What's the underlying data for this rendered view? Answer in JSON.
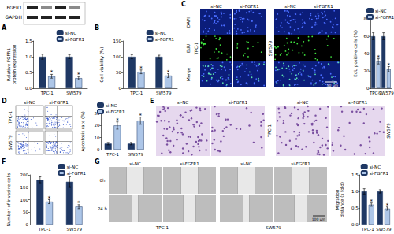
{
  "chart_data": [
    {
      "type": "bar",
      "ylabel": "Relative FGFR1 protein expression",
      "categories": [
        "TPC-1",
        "SW579"
      ],
      "series": [
        {
          "name": "si-NC",
          "color": "#1f3864",
          "values": [
            1.0,
            1.0
          ],
          "errors": [
            0.08,
            0.06
          ]
        },
        {
          "name": "si-FGFR1",
          "color": "#adc6e8",
          "values": [
            0.38,
            0.32
          ],
          "errors": [
            0.06,
            0.05
          ],
          "annotations": [
            "*",
            "*"
          ]
        }
      ],
      "ylim": [
        0,
        1.5
      ],
      "yticks": [
        {
          "value": 0,
          "label": "0.0"
        },
        0.5,
        {
          "value": 1,
          "label": "1.0"
        },
        1.5
      ],
      "legend": "upper right",
      "grid": false
    },
    {
      "type": "bar",
      "ylabel": "Cell viability (%)",
      "categories": [
        "TPC-1",
        "SW579"
      ],
      "series": [
        {
          "name": "si-NC",
          "color": "#1f3864",
          "values": [
            100,
            100
          ],
          "errors": [
            6,
            5
          ]
        },
        {
          "name": "si-FGFR1",
          "color": "#adc6e8",
          "values": [
            52,
            40
          ],
          "errors": [
            6,
            6
          ],
          "annotations": [
            "*",
            "*"
          ]
        }
      ],
      "ylim": [
        0,
        150
      ],
      "yticks": [
        0,
        50,
        100,
        150
      ],
      "legend": "upper right",
      "grid": false
    },
    {
      "type": "bar",
      "ylabel": "EdU positive cells (%)",
      "categories": [
        "TPC-1",
        "SW579"
      ],
      "series": [
        {
          "name": "si-NC",
          "color": "#1f3864",
          "values": [
            60,
            60
          ],
          "errors": [
            4,
            4
          ]
        },
        {
          "name": "si-FGFR1",
          "color": "#adc6e8",
          "values": [
            31,
            22
          ],
          "errors": [
            3,
            3
          ],
          "annotations": [
            "*",
            "*"
          ]
        }
      ],
      "ylim": [
        0,
        80
      ],
      "yticks": [
        0,
        20,
        40,
        60,
        80
      ],
      "legend": "upper left",
      "grid": false
    },
    {
      "type": "bar",
      "ylabel": "Apoptosis rate (%)",
      "categories": [
        "TPC-1",
        "SW579"
      ],
      "series": [
        {
          "name": "si-NC",
          "color": "#1f3864",
          "values": [
            5,
            5
          ],
          "errors": [
            1,
            1
          ]
        },
        {
          "name": "si-FGFR1",
          "color": "#adc6e8",
          "values": [
            20,
            24
          ],
          "errors": [
            3,
            3
          ],
          "annotations": [
            "*",
            "*"
          ]
        }
      ],
      "ylim": [
        0,
        30
      ],
      "yticks": [
        0,
        10,
        20,
        30
      ],
      "legend": "upper left",
      "grid": false
    },
    {
      "type": "bar",
      "ylabel": "Number of invasive cells",
      "categories": [
        "TPC-1",
        "SW579"
      ],
      "series": [
        {
          "name": "si-NC",
          "color": "#1f3864",
          "values": [
            180,
            172
          ],
          "errors": [
            12,
            20
          ]
        },
        {
          "name": "si-FGFR1",
          "color": "#adc6e8",
          "values": [
            92,
            72
          ],
          "errors": [
            8,
            8
          ],
          "annotations": [
            "*",
            "*"
          ]
        }
      ],
      "ylim": [
        0,
        200
      ],
      "yticks": [
        0,
        50,
        100,
        150,
        200
      ],
      "legend": "upper right",
      "grid": false
    },
    {
      "type": "bar",
      "ylabel": "Migration distance (x fold)",
      "categories": [
        "TPC-1",
        "SW579"
      ],
      "series": [
        {
          "name": "si-NC",
          "color": "#1f3864",
          "values": [
            1.0,
            1.0
          ],
          "errors": [
            0.08,
            0.05
          ]
        },
        {
          "name": "si-FGFR1",
          "color": "#adc6e8",
          "values": [
            0.6,
            0.48
          ],
          "errors": [
            0.05,
            0.05
          ],
          "annotations": [
            "*",
            "*"
          ]
        }
      ],
      "ylim": [
        0,
        1.5
      ],
      "yticks": [
        {
          "value": 0,
          "label": "0.0"
        },
        0.5,
        {
          "value": 1,
          "label": "1.0"
        },
        1.5
      ],
      "legend": "upper right",
      "grid": false
    }
  ],
  "figure": {
    "panel_letters": [
      "A",
      "B",
      "C",
      "D",
      "E",
      "F",
      "G"
    ],
    "blot": {
      "labels": [
        "FGFR1",
        "GAPDH"
      ]
    },
    "edu": {
      "columns": [
        "si-NC",
        "si-FGFR1",
        "si-NC",
        "si-FGFR1"
      ],
      "rows": [
        "DAPI",
        "EdU",
        "Merge"
      ],
      "cell_lines": [
        "TPC-1",
        "SW579"
      ],
      "scale_bar": "50 μm"
    },
    "flow": {
      "columns": [
        "si-NC",
        "si-FGFR1"
      ],
      "rows": [
        "TPC-1",
        "SW579"
      ]
    },
    "transwell": {
      "columns": [
        "si-NC",
        "si-FGFR1",
        "si-NC",
        "si-FGFR1"
      ],
      "cell_lines": [
        "TPC-1",
        "SW579"
      ]
    },
    "wound": {
      "columns": [
        "si-NC",
        "si-FGFR1",
        "si-NC",
        "si-FGFR1"
      ],
      "rows": [
        "0h",
        "24 h"
      ],
      "cell_lines": [
        "TPC-1",
        "SW579"
      ],
      "scale_bar": "100 μm"
    }
  }
}
